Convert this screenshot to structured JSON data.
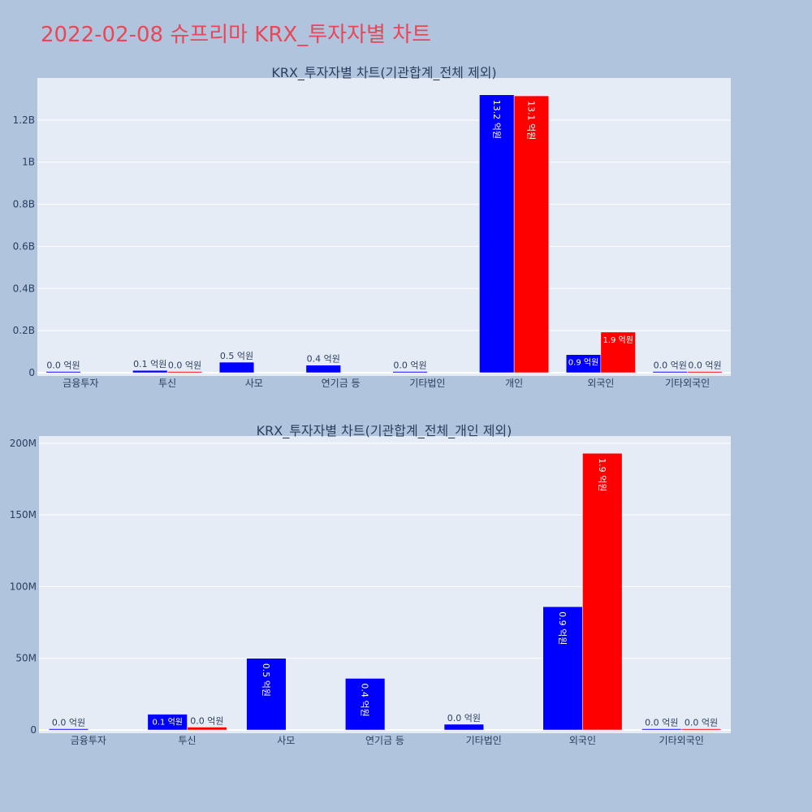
{
  "title": "2022-02-08 슈프리마 KRX_투자자별 차트",
  "colors": {
    "page_bg": "#b0c4de",
    "plot_bg": "#e5ecf6",
    "buy": "#0000ff",
    "sell": "#ff0000",
    "title": "#e8475a"
  },
  "chart_data": [
    {
      "type": "bar",
      "title": "KRX_투자자별 차트(기관합계_전체 제외)",
      "categories": [
        "금융투자",
        "투신",
        "사모",
        "연기금 등",
        "기타법인",
        "개인",
        "외국인",
        "기타외국인"
      ],
      "ylim": [
        0,
        1400000000
      ],
      "yticks": [
        0,
        200000000,
        400000000,
        600000000,
        800000000,
        1000000000,
        1200000000
      ],
      "ytick_labels": [
        "0",
        "0.2B",
        "0.4B",
        "0.6B",
        "0.8B",
        "1B",
        "1.2B"
      ],
      "grid": true,
      "series": [
        {
          "color": "#0000ff",
          "values": [
            100000,
            11000000,
            50000000,
            36000000,
            4000000,
            1320000000,
            86000000,
            300000
          ],
          "labels": [
            "0.0 억원",
            "0.1 억원",
            "0.5 억원",
            "0.4 억원",
            "0.0 억원",
            "13.2 억원",
            "0.9 억원",
            "0.0 억원"
          ]
        },
        {
          "color": "#ff0000",
          "values": [
            0,
            2000000,
            0,
            0,
            0,
            1315000000,
            193000000,
            200000
          ],
          "labels": [
            null,
            "0.0 억원",
            null,
            null,
            null,
            "13.1 억원",
            "1.9 억원",
            "0.0 억원"
          ]
        }
      ]
    },
    {
      "type": "bar",
      "title": "KRX_투자자별 차트(기관합계_전체_개인 제외)",
      "categories": [
        "금융투자",
        "투신",
        "사모",
        "연기금 등",
        "기타법인",
        "외국인",
        "기타외국인"
      ],
      "ylim": [
        0,
        205000000
      ],
      "yticks": [
        0,
        50000000,
        100000000,
        150000000,
        200000000
      ],
      "ytick_labels": [
        "0",
        "50M",
        "100M",
        "150M",
        "200M"
      ],
      "grid": true,
      "series": [
        {
          "color": "#0000ff",
          "values": [
            100000,
            11000000,
            50000000,
            36000000,
            4000000,
            86000000,
            300000
          ],
          "labels": [
            "0.0 억원",
            "0.1 억원",
            "0.5 억원",
            "0.4 억원",
            "0.0 억원",
            "0.9 억원",
            "0.0 억원"
          ]
        },
        {
          "color": "#ff0000",
          "values": [
            0,
            2000000,
            0,
            0,
            0,
            193000000,
            200000
          ],
          "labels": [
            null,
            "0.0 억원",
            null,
            null,
            null,
            "1.9 억원",
            "0.0 억원"
          ]
        }
      ]
    }
  ]
}
